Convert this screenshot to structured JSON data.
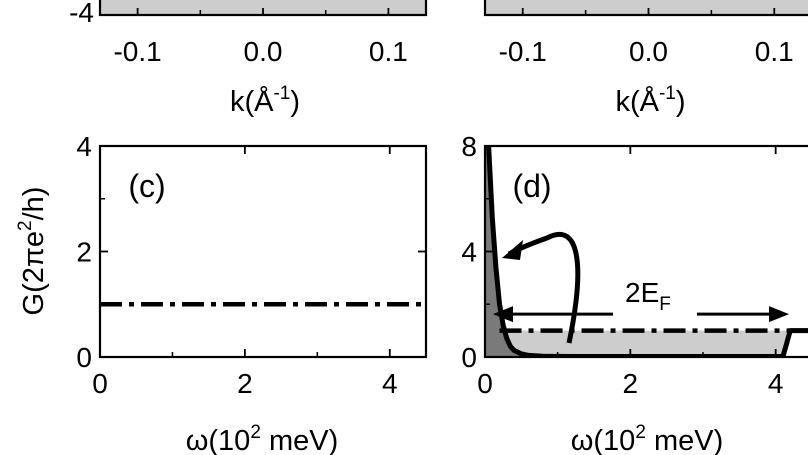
{
  "chart_data": [
    {
      "id": "a",
      "type": "area",
      "panel_label": "",
      "xlabel": "k(Å⁻¹)",
      "x_ticks": [
        "-0.1",
        "0.0",
        "0.1"
      ],
      "y_ticks_visible": [
        "-4"
      ],
      "xlim": [
        -0.13,
        0.13
      ]
    },
    {
      "id": "b",
      "type": "area",
      "panel_label": "",
      "xlabel": "k(Å⁻¹)",
      "x_ticks": [
        "-0.1",
        "0.0",
        "0.1"
      ],
      "xlim": [
        -0.13,
        0.13
      ]
    },
    {
      "id": "c",
      "type": "line",
      "panel_label": "(c)",
      "xlabel": "ω(10² meV)",
      "ylabel": "G(2πe²/h)",
      "x_ticks": [
        "0",
        "2",
        "4"
      ],
      "y_ticks": [
        "0",
        "2",
        "4"
      ],
      "xlim": [
        0,
        4.5
      ],
      "ylim": [
        0,
        4
      ],
      "series": [
        {
          "style": "dash-dot",
          "x": [
            0,
            4.5
          ],
          "y": [
            1.0,
            1.0
          ]
        }
      ]
    },
    {
      "id": "d",
      "type": "line",
      "panel_label": "(d)",
      "xlabel": "ω(10² meV)",
      "x_ticks": [
        "0",
        "2",
        "4"
      ],
      "y_ticks": [
        "0",
        "4",
        "8"
      ],
      "xlim": [
        0,
        4.5
      ],
      "ylim": [
        0,
        8
      ],
      "annotation": "2E",
      "annotation_sub": "F",
      "series": [
        {
          "style": "solid",
          "x": [
            0.05,
            0.1,
            0.15,
            0.2,
            0.25,
            0.3,
            0.35,
            0.4,
            0.5,
            0.6,
            0.8,
            1.2,
            2.0,
            3.0,
            4.1,
            4.15,
            4.2,
            4.5
          ],
          "y": [
            8.0,
            5.3,
            3.4,
            2.0,
            1.2,
            0.7,
            0.4,
            0.25,
            0.12,
            0.06,
            0.03,
            0.02,
            0.02,
            0.02,
            0.02,
            0.5,
            1.0,
            1.0
          ]
        },
        {
          "style": "dash-dot",
          "x": [
            0.2,
            4.5
          ],
          "y": [
            1.0,
            1.0
          ]
        }
      ]
    }
  ]
}
